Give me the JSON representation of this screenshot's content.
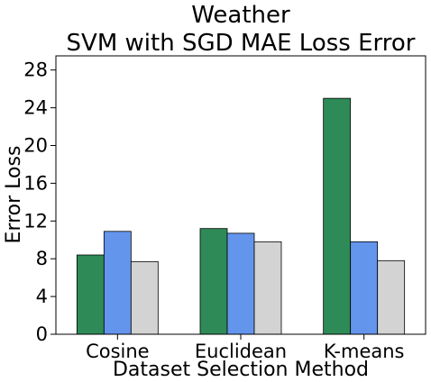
{
  "chart_data": {
    "type": "bar",
    "title": "Weather",
    "subtitle": "SVM with SGD MAE Loss Error",
    "xlabel": "Dataset Selection Method",
    "ylabel": "Error Loss",
    "categories": [
      "Cosine",
      "Euclidean",
      "K-means"
    ],
    "series": [
      {
        "values": [
          8.4,
          11.2,
          25.0
        ],
        "color": "#2e8b57"
      },
      {
        "values": [
          10.9,
          10.7,
          9.8
        ],
        "color": "#6495ed"
      },
      {
        "values": [
          7.7,
          9.8,
          7.8
        ],
        "color": "#d3d3d3"
      }
    ],
    "ylim": [
      0,
      29.5
    ],
    "yticks": [
      0,
      4,
      8,
      12,
      16,
      20,
      24,
      28
    ],
    "grid": false,
    "legend": "none"
  }
}
